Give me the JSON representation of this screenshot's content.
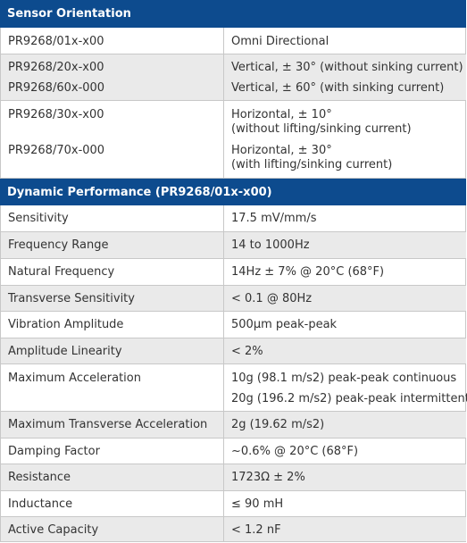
{
  "sections": [
    {
      "title": "Sensor Orientation",
      "rows": [
        {
          "label": [
            "PR9268/01x-x00"
          ],
          "value": [
            "Omni Directional"
          ]
        },
        {
          "label": [
            "PR9268/20x-x00",
            "PR9268/60x-000"
          ],
          "value": [
            "Vertical, ± 30° (without sinking current)",
            "Vertical, ± 60° (with sinking current)"
          ]
        },
        {
          "label": [
            "PR9268/30x-x00",
            "PR9268/70x-000"
          ],
          "value": [
            "Horizontal, ± 10°",
            "(without lifting/sinking current)",
            "Horizontal, ± 30°",
            "(with lifting/sinking current)"
          ]
        }
      ]
    },
    {
      "title": "Dynamic Performance (PR9268/01x-x00)",
      "rows": [
        {
          "label": [
            "Sensitivity"
          ],
          "value": [
            "17.5 mV/mm/s"
          ]
        },
        {
          "label": [
            "Frequency Range"
          ],
          "value": [
            "14 to 1000Hz"
          ]
        },
        {
          "label": [
            "Natural Frequency"
          ],
          "value": [
            "14Hz ± 7% @ 20°C (68°F)"
          ]
        },
        {
          "label": [
            "Transverse Sensitivity"
          ],
          "value": [
            "< 0.1 @ 80Hz"
          ]
        },
        {
          "label": [
            "Vibration Amplitude"
          ],
          "value": [
            "500µm peak-peak"
          ]
        },
        {
          "label": [
            "Amplitude Linearity"
          ],
          "value": [
            "< 2%"
          ]
        },
        {
          "label": [
            "Maximum Acceleration"
          ],
          "value": [
            "10g (98.1 m/s2) peak-peak continuous",
            "20g (196.2 m/s2) peak-peak intermittent"
          ]
        },
        {
          "label": [
            "Maximum Transverse Acceleration"
          ],
          "value": [
            "2g (19.62 m/s2)"
          ]
        },
        {
          "label": [
            "Damping Factor"
          ],
          "value": [
            "~0.6% @ 20°C (68°F)"
          ]
        },
        {
          "label": [
            "Resistance"
          ],
          "value": [
            "1723Ω ± 2%"
          ]
        },
        {
          "label": [
            "Inductance"
          ],
          "value": [
            "≤ 90 mH"
          ]
        },
        {
          "label": [
            "Active Capacity"
          ],
          "value": [
            "< 1.2 nF"
          ]
        }
      ]
    }
  ]
}
